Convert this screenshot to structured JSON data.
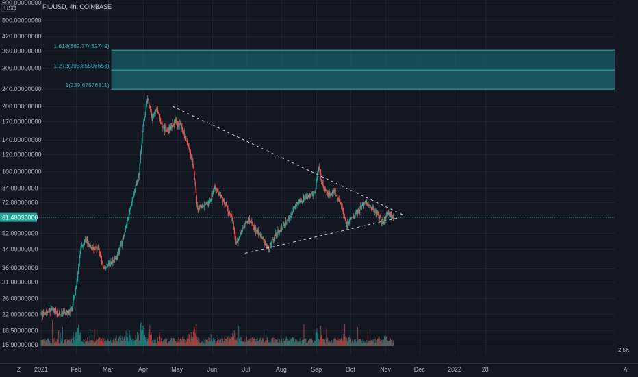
{
  "header": {
    "symbol": "FIL/USD, 4h, COINBASE",
    "currency_badge": "USD"
  },
  "price_axis": {
    "labels": [
      "600.00000000",
      "500.00000000",
      "420.00000000",
      "360.00000000",
      "300.00000000",
      "240.00000000",
      "200.00000000",
      "170.00000000",
      "140.00000000",
      "120.00000000",
      "100.00000000",
      "84.00000000",
      "72.00000000",
      "61.48030000",
      "52.00000000",
      "44.00000000",
      "36.00000000",
      "31.00000000",
      "26.00000000",
      "22.00000000",
      "18.50000000",
      "15.90000000"
    ],
    "values": [
      600,
      500,
      420,
      360,
      300,
      240,
      200,
      170,
      140,
      120,
      100,
      84,
      72,
      61.4803,
      52,
      44,
      36,
      31,
      26,
      22,
      18.5,
      15.9
    ],
    "current_price_label": "61.48030000",
    "volume_label": "2.5K"
  },
  "time_axis": {
    "labels": [
      "2021",
      "Feb",
      "Mar",
      "Apr",
      "May",
      "Jun",
      "Jul",
      "Aug",
      "Sep",
      "Oct",
      "Nov",
      "Dec",
      "2022",
      "28"
    ]
  },
  "bottom_bar": {
    "left_icon": "Z",
    "right_icon": "A"
  },
  "colors": {
    "background": "#131722",
    "up": "#26a69a",
    "down": "#ef5350",
    "fib_fill": "#1a5e68",
    "fib_line": "#2ab1b5",
    "trendline": "#d1d4dc",
    "grid": "#1e222d"
  },
  "chart_data": {
    "type": "candlestick",
    "title": "FIL/USD, 4h, COINBASE",
    "yscale": "log",
    "ylim": [
      15.9,
      600
    ],
    "current_price": 61.4803,
    "fib_levels": [
      {
        "label": "1.618(362.77432749)",
        "value": 362.77432749
      },
      {
        "label": "1.272(293.85506653)",
        "value": 293.85506653
      },
      {
        "label": "1(239.67576311)",
        "value": 239.67576311
      }
    ],
    "trendlines": [
      {
        "name": "descending resistance",
        "from": {
          "date": "2021-04-27",
          "price": 200
        },
        "to": {
          "date": "2021-11-17",
          "price": 63
        }
      },
      {
        "name": "ascending support",
        "from": {
          "date": "2021-06-30",
          "price": 42
        },
        "to": {
          "date": "2021-11-17",
          "price": 62
        }
      }
    ],
    "price_path": [
      {
        "date": "2021-01-01",
        "price": 22
      },
      {
        "date": "2021-01-10",
        "price": 23
      },
      {
        "date": "2021-01-20",
        "price": 22
      },
      {
        "date": "2021-01-28",
        "price": 23
      },
      {
        "date": "2021-02-02",
        "price": 32
      },
      {
        "date": "2021-02-05",
        "price": 45
      },
      {
        "date": "2021-02-10",
        "price": 48
      },
      {
        "date": "2021-02-14",
        "price": 44
      },
      {
        "date": "2021-02-20",
        "price": 45
      },
      {
        "date": "2021-02-25",
        "price": 36
      },
      {
        "date": "2021-03-01",
        "price": 37
      },
      {
        "date": "2021-03-08",
        "price": 40
      },
      {
        "date": "2021-03-15",
        "price": 50
      },
      {
        "date": "2021-03-22",
        "price": 72
      },
      {
        "date": "2021-03-28",
        "price": 95
      },
      {
        "date": "2021-04-01",
        "price": 160
      },
      {
        "date": "2021-04-05",
        "price": 220
      },
      {
        "date": "2021-04-09",
        "price": 175
      },
      {
        "date": "2021-04-13",
        "price": 195
      },
      {
        "date": "2021-04-18",
        "price": 160
      },
      {
        "date": "2021-04-23",
        "price": 155
      },
      {
        "date": "2021-04-29",
        "price": 170
      },
      {
        "date": "2021-05-05",
        "price": 160
      },
      {
        "date": "2021-05-11",
        "price": 130
      },
      {
        "date": "2021-05-15",
        "price": 110
      },
      {
        "date": "2021-05-19",
        "price": 68
      },
      {
        "date": "2021-05-24",
        "price": 70
      },
      {
        "date": "2021-05-29",
        "price": 70
      },
      {
        "date": "2021-06-03",
        "price": 85
      },
      {
        "date": "2021-06-08",
        "price": 78
      },
      {
        "date": "2021-06-13",
        "price": 70
      },
      {
        "date": "2021-06-19",
        "price": 60
      },
      {
        "date": "2021-06-22",
        "price": 46
      },
      {
        "date": "2021-06-28",
        "price": 55
      },
      {
        "date": "2021-07-03",
        "price": 60
      },
      {
        "date": "2021-07-10",
        "price": 54
      },
      {
        "date": "2021-07-17",
        "price": 48
      },
      {
        "date": "2021-07-21",
        "price": 44
      },
      {
        "date": "2021-07-26",
        "price": 50
      },
      {
        "date": "2021-08-02",
        "price": 55
      },
      {
        "date": "2021-08-08",
        "price": 62
      },
      {
        "date": "2021-08-15",
        "price": 72
      },
      {
        "date": "2021-08-22",
        "price": 76
      },
      {
        "date": "2021-08-31",
        "price": 80
      },
      {
        "date": "2021-09-03",
        "price": 105
      },
      {
        "date": "2021-09-07",
        "price": 85
      },
      {
        "date": "2021-09-12",
        "price": 78
      },
      {
        "date": "2021-09-17",
        "price": 80
      },
      {
        "date": "2021-09-23",
        "price": 70
      },
      {
        "date": "2021-09-28",
        "price": 56
      },
      {
        "date": "2021-10-02",
        "price": 62
      },
      {
        "date": "2021-10-08",
        "price": 65
      },
      {
        "date": "2021-10-14",
        "price": 72
      },
      {
        "date": "2021-10-20",
        "price": 68
      },
      {
        "date": "2021-10-25",
        "price": 64
      },
      {
        "date": "2021-10-30",
        "price": 58
      },
      {
        "date": "2021-11-03",
        "price": 65
      },
      {
        "date": "2021-11-08",
        "price": 61.48
      }
    ]
  }
}
